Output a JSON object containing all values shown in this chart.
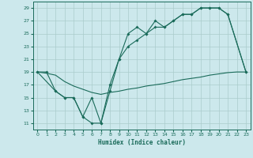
{
  "title": "",
  "xlabel": "Humidex (Indice chaleur)",
  "bg_color": "#cce8ec",
  "grid_color": "#aacccc",
  "line_color": "#1a6b5a",
  "xlim": [
    -0.5,
    23.5
  ],
  "ylim": [
    10,
    30
  ],
  "yticks": [
    11,
    13,
    15,
    17,
    19,
    21,
    23,
    25,
    27,
    29
  ],
  "xticks": [
    0,
    1,
    2,
    3,
    4,
    5,
    6,
    7,
    8,
    9,
    10,
    11,
    12,
    13,
    14,
    15,
    16,
    17,
    18,
    19,
    20,
    21,
    22,
    23
  ],
  "line1_x": [
    0,
    1,
    2,
    3,
    4,
    5,
    6,
    7,
    8,
    9,
    10,
    11,
    12,
    13,
    14,
    15,
    16,
    17,
    18,
    19,
    20,
    21,
    23
  ],
  "line1_y": [
    19,
    19,
    16,
    15,
    15,
    12,
    11,
    11,
    17,
    21,
    25,
    26,
    25,
    27,
    26,
    27,
    28,
    28,
    29,
    29,
    29,
    28,
    19
  ],
  "line2_x": [
    0,
    2,
    3,
    4,
    5,
    6,
    7,
    8,
    9,
    10,
    11,
    12,
    13,
    14,
    15,
    16,
    17,
    18,
    19,
    20,
    21,
    23
  ],
  "line2_y": [
    19,
    16,
    15,
    15,
    12,
    15,
    11,
    16,
    21,
    23,
    24,
    25,
    26,
    26,
    27,
    28,
    28,
    29,
    29,
    29,
    28,
    19
  ],
  "line3_x": [
    0,
    1,
    2,
    3,
    4,
    5,
    6,
    7,
    8,
    9,
    10,
    11,
    12,
    13,
    14,
    15,
    16,
    17,
    18,
    19,
    20,
    21,
    22,
    23
  ],
  "line3_y": [
    19,
    18.8,
    18.5,
    17.5,
    16.8,
    16.3,
    15.8,
    15.5,
    15.8,
    16.0,
    16.3,
    16.5,
    16.8,
    17.0,
    17.2,
    17.5,
    17.8,
    18.0,
    18.2,
    18.5,
    18.7,
    18.9,
    19.0,
    19.0
  ]
}
